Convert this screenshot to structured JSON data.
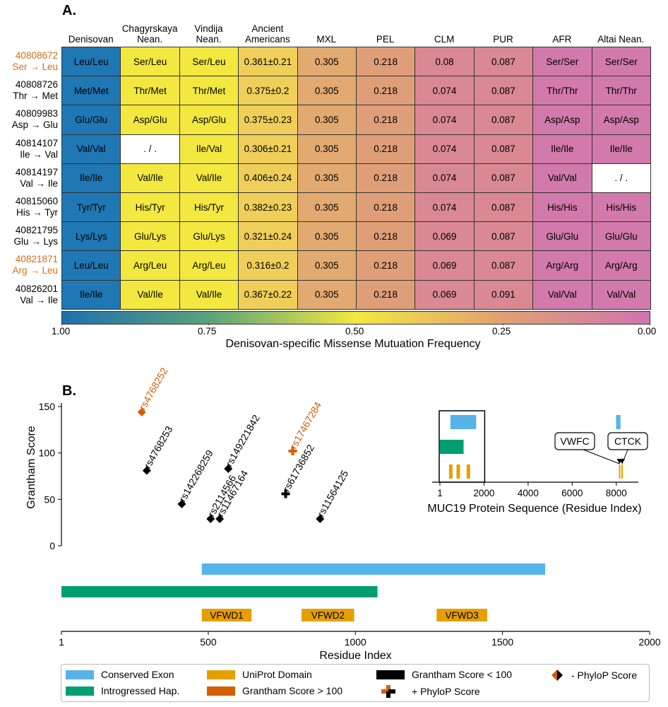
{
  "panel_a": {
    "letter": "A.",
    "columns": [
      "Denisovan",
      "Chagyrskaya\nNean.",
      "Vindija\nNean.",
      "Ancient\nAmericans",
      "MXL",
      "PEL",
      "CLM",
      "PUR",
      "AFR",
      "Altai Nean."
    ],
    "rows": [
      {
        "pos": "40808672",
        "change": "Ser → Leu",
        "highlight": true,
        "cells": [
          "Leu/Leu",
          "Ser/Leu",
          "Ser/Leu",
          "0.361±0.21",
          "0.305",
          "0.218",
          "0.08",
          "0.087",
          "Ser/Ser",
          "Ser/Ser"
        ]
      },
      {
        "pos": "40808726",
        "change": "Thr → Met",
        "highlight": false,
        "cells": [
          "Met/Met",
          "Thr/Met",
          "Thr/Met",
          "0.375±0.2",
          "0.305",
          "0.218",
          "0.074",
          "0.087",
          "Thr/Thr",
          "Thr/Thr"
        ]
      },
      {
        "pos": "40809983",
        "change": "Asp → Glu",
        "highlight": false,
        "cells": [
          "Glu/Glu",
          "Asp/Glu",
          "Asp/Glu",
          "0.375±0.23",
          "0.305",
          "0.218",
          "0.074",
          "0.087",
          "Asp/Asp",
          "Asp/Asp"
        ]
      },
      {
        "pos": "40814107",
        "change": "Ile → Val",
        "highlight": false,
        "cells": [
          "Val/Val",
          "./.",
          "Ile/Val",
          "0.306±0.21",
          "0.305",
          "0.218",
          "0.074",
          "0.087",
          "Ile/Ile",
          "Ile/Ile"
        ]
      },
      {
        "pos": "40814197",
        "change": "Val → Ile",
        "highlight": false,
        "cells": [
          "Ile/Ile",
          "Val/Ile",
          "Val/Ile",
          "0.406±0.24",
          "0.305",
          "0.218",
          "0.074",
          "0.087",
          "Val/Val",
          "./."
        ]
      },
      {
        "pos": "40815060",
        "change": "His → Tyr",
        "highlight": false,
        "cells": [
          "Tyr/Tyr",
          "His/Tyr",
          "His/Tyr",
          "0.382±0.23",
          "0.305",
          "0.218",
          "0.074",
          "0.087",
          "His/His",
          "His/His"
        ]
      },
      {
        "pos": "40821795",
        "change": "Glu → Lys",
        "highlight": false,
        "cells": [
          "Lys/Lys",
          "Glu/Lys",
          "Glu/Lys",
          "0.321±0.24",
          "0.305",
          "0.218",
          "0.069",
          "0.087",
          "Glu/Glu",
          "Glu/Glu"
        ]
      },
      {
        "pos": "40821871",
        "change": "Arg → Leu",
        "highlight": true,
        "cells": [
          "Leu/Leu",
          "Arg/Leu",
          "Arg/Leu",
          "0.316±0.2",
          "0.305",
          "0.218",
          "0.069",
          "0.087",
          "Arg/Arg",
          "Arg/Arg"
        ]
      },
      {
        "pos": "40826201",
        "change": "Val → Ile",
        "highlight": false,
        "cells": [
          "Ile/Ile",
          "Val/Ile",
          "Val/Ile",
          "0.367±0.22",
          "0.305",
          "0.218",
          "0.069",
          "0.091",
          "Val/Val",
          "Val/Val"
        ]
      }
    ],
    "column_colors": [
      "#1f77b4",
      "#f3e840",
      "#f3e840",
      "#efcf5a",
      "#e2aa70",
      "#df9e78",
      "#d98894",
      "#d98894",
      "#d27aab",
      "#d27aab"
    ],
    "missing_color": "#ffffff",
    "colorbar": {
      "ticks": [
        "1.00",
        "0.75",
        "0.50",
        "0.25",
        "0.00"
      ],
      "label": "Denisovan-specific Missense Mutuation Frequency"
    }
  },
  "chart_data": [
    {
      "type": "scatter",
      "title": "",
      "panel": "B.",
      "xlabel": "Residue Index",
      "ylabel": "Grantham Score",
      "xlim": [
        1,
        2000
      ],
      "ylim": [
        0,
        150
      ],
      "x_ticks": [
        "1",
        "500",
        "1000",
        "1500",
        "2000"
      ],
      "y_ticks": [
        "0",
        "50",
        "100",
        "150"
      ],
      "points": [
        {
          "label": "rs4768252",
          "x": 274,
          "y": 144,
          "category": "grantham_gt_100_neg_phylop"
        },
        {
          "label": "rs4768253",
          "x": 291,
          "y": 81,
          "category": "grantham_lt_100_neg_phylop"
        },
        {
          "label": "rs142268259",
          "x": 410,
          "y": 45,
          "category": "grantham_lt_100_neg_phylop"
        },
        {
          "label": "rs2114566",
          "x": 508,
          "y": 29,
          "category": "grantham_lt_100_neg_phylop"
        },
        {
          "label": "rs11467164",
          "x": 539,
          "y": 29,
          "category": "grantham_lt_100_neg_phylop"
        },
        {
          "label": "rs149221842",
          "x": 568,
          "y": 83,
          "category": "grantham_lt_100_neg_phylop"
        },
        {
          "label": "rs17467284",
          "x": 787,
          "y": 102,
          "category": "grantham_gt_100_pos_phylop"
        },
        {
          "label": "rs61736852",
          "x": 763,
          "y": 56,
          "category": "grantham_lt_100_pos_phylop"
        },
        {
          "label": "rs11564125",
          "x": 880,
          "y": 29,
          "category": "grantham_lt_100_neg_phylop"
        }
      ],
      "tracks": [
        {
          "name": "Conserved Exon",
          "start": 478,
          "end": 1645
        },
        {
          "name": "Introgressed Hap.",
          "start": 1,
          "end": 1075
        }
      ],
      "domains": [
        {
          "name": "VFWD1",
          "start": 478,
          "end": 647
        },
        {
          "name": "VFWD2",
          "start": 817,
          "end": 996
        },
        {
          "name": "VFWD3",
          "start": 1276,
          "end": 1448
        }
      ]
    },
    {
      "type": "scatter",
      "title": "",
      "panel": "inset",
      "xlabel": "MUC19 Protein Sequence (Residue Index)",
      "xlim": [
        1,
        9000
      ],
      "x_ticks": [
        "1",
        "2000",
        "4000",
        "6000",
        "8000"
      ],
      "zoom_box": [
        1,
        2000
      ],
      "tracks": [
        {
          "name": "Conserved Exon",
          "start": 478,
          "end": 1645
        },
        {
          "name": "Conserved Exon",
          "start": 7990,
          "end": 8190
        },
        {
          "name": "Introgressed Hap.",
          "start": 1,
          "end": 1075
        }
      ],
      "domains": [
        {
          "name": "VFWD1",
          "start": 478,
          "end": 647
        },
        {
          "name": "VFWD2",
          "start": 817,
          "end": 996
        },
        {
          "name": "VFWD3",
          "start": 1276,
          "end": 1448
        },
        {
          "name": "VWFC",
          "start": 8120,
          "end": 8180
        },
        {
          "name": "CTCK",
          "start": 8230,
          "end": 8300
        }
      ],
      "callouts": [
        "VWFC",
        "CTCK"
      ]
    }
  ],
  "legend": {
    "items": [
      {
        "label": "Conserved Exon",
        "color": "#56b4e9",
        "kind": "swatch"
      },
      {
        "label": "Introgressed Hap.",
        "color": "#009e73",
        "kind": "swatch"
      },
      {
        "label": "UniProt Domain",
        "color": "#e69f00",
        "kind": "swatch"
      },
      {
        "label": "Grantham Score > 100",
        "color": "#d55e00",
        "kind": "swatch"
      },
      {
        "label": "Grantham Score < 100",
        "color": "#000000",
        "kind": "swatch"
      },
      {
        "label": "+ PhyloP Score",
        "color": "#d55e00",
        "kind": "plus"
      },
      {
        "label": "- PhyloP Score",
        "color": "#d55e00",
        "kind": "diamond"
      }
    ]
  },
  "colors": {
    "orange_text": "#d86c17",
    "grantham_high": "#d55e00",
    "grantham_low": "#000000",
    "conserved": "#56b4e9",
    "introgressed": "#009e73",
    "domain": "#e69f00"
  }
}
